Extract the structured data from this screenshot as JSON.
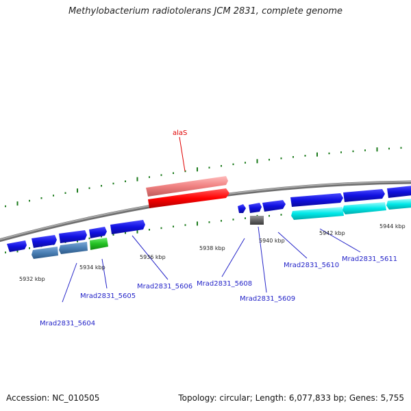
{
  "title": "Methylobacterium radiotolerans JCM 2831, complete genome",
  "footer": {
    "accession": "Accession: NC_010505",
    "summary": "Topology: circular; Length: 6,077,833 bp; Genes: 5,755"
  },
  "colors": {
    "backbone": "#8a8a8a",
    "tick": "#1a7a1a",
    "gene_blue": "#1010e0",
    "gene_steelblue": "#4a7fb5",
    "gene_green": "#22c022",
    "gene_gray": "#666666",
    "gene_cyan": "#00e8e8",
    "rrna_red": "#ff0000",
    "rrna_pink": "#f08080",
    "label_blue": "#2323c8",
    "label_red": "#e00000"
  },
  "kbp_labels": [
    "5932 kbp",
    "5934 kbp",
    "5936 kbp",
    "5938 kbp",
    "5940 kbp",
    "5942 kbp",
    "5944 kbp"
  ],
  "gene_labels": [
    "alaS",
    "Mrad2831_5604",
    "Mrad2831_5605",
    "Mrad2831_5606",
    "Mrad2831_5608",
    "Mrad2831_5609",
    "Mrad2831_5610",
    "Mrad2831_5611"
  ]
}
